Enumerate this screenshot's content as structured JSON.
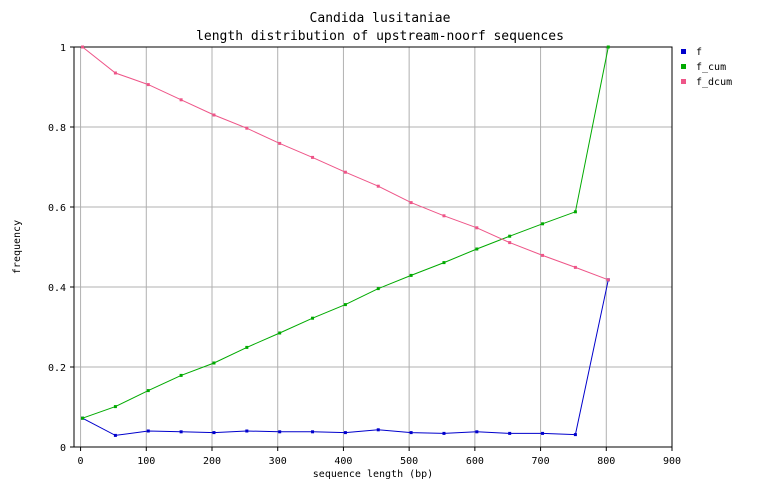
{
  "chart_data": {
    "type": "line",
    "title": "Candida lusitaniae",
    "subtitle": "length distribution of upstream-noorf sequences",
    "xlabel": "sequence length (bp)",
    "ylabel": "frequency",
    "xlim": [
      -10,
      900
    ],
    "ylim": [
      0,
      1
    ],
    "xticks": [
      0,
      100,
      200,
      300,
      400,
      500,
      600,
      700,
      800,
      900
    ],
    "yticks": [
      0,
      0.2,
      0.4,
      0.6,
      0.8,
      1
    ],
    "ytick_labels": [
      "0",
      "0.2",
      "0.4",
      "0.6",
      "0.8",
      "1"
    ],
    "grid": true,
    "legend_position": "top-right",
    "x": [
      3,
      53,
      103,
      153,
      203,
      253,
      303,
      353,
      403,
      453,
      503,
      553,
      603,
      653,
      703,
      753,
      803
    ],
    "series": [
      {
        "name": "f",
        "color": "#0000cc",
        "values": [
          0.072,
          0.029,
          0.04,
          0.038,
          0.036,
          0.04,
          0.038,
          0.038,
          0.036,
          0.043,
          0.036,
          0.034,
          0.038,
          0.034,
          0.034,
          0.031,
          0.418
        ]
      },
      {
        "name": "f_cum",
        "color": "#00aa00",
        "values": [
          0.072,
          0.101,
          0.141,
          0.179,
          0.21,
          0.249,
          0.285,
          0.322,
          0.356,
          0.396,
          0.429,
          0.461,
          0.495,
          0.527,
          0.558,
          0.588,
          1.0
        ]
      },
      {
        "name": "f_dcum",
        "color": "#ee5588",
        "values": [
          1.0,
          0.935,
          0.906,
          0.868,
          0.83,
          0.797,
          0.759,
          0.724,
          0.687,
          0.652,
          0.611,
          0.578,
          0.548,
          0.511,
          0.479,
          0.449,
          0.418
        ]
      }
    ]
  }
}
